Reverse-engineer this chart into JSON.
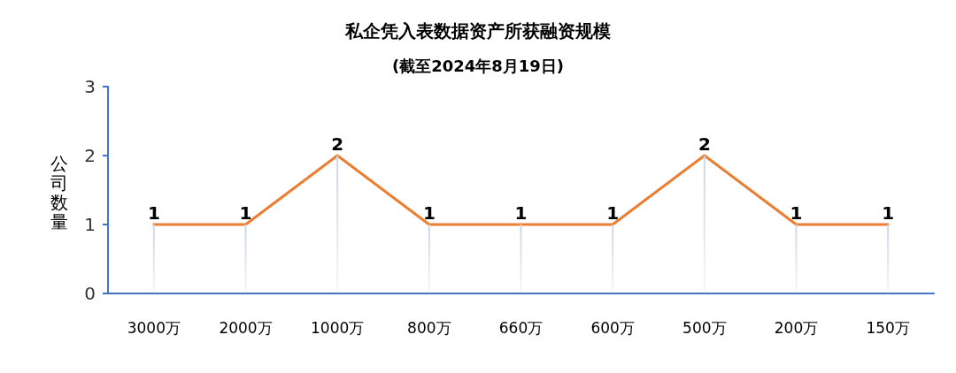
{
  "chart_data": {
    "type": "line",
    "title": "私企凭入表数据资产所获融资规模",
    "subtitle": "(截至2024年8月19日)",
    "ylabel": "公司数量",
    "categories": [
      "3000万",
      "2000万",
      "1000万",
      "800万",
      "660万",
      "600万",
      "500万",
      "200万",
      "150万"
    ],
    "series": [
      {
        "type": "bar",
        "color": "#c9d6ea",
        "values": [
          1,
          1,
          2,
          1,
          1,
          1,
          2,
          1,
          1
        ]
      },
      {
        "color": "#ed7d31",
        "values": [
          1,
          1,
          2,
          1,
          1,
          1,
          2,
          1,
          1
        ],
        "value_labels": [
          "1",
          "1",
          "2",
          "1",
          "1",
          "1",
          "2",
          "1",
          "1"
        ]
      }
    ],
    "ylim": [
      0,
      3
    ],
    "yticks": [
      0,
      1,
      2,
      3
    ],
    "grid": false,
    "marker": "none",
    "line_style": "solid"
  }
}
